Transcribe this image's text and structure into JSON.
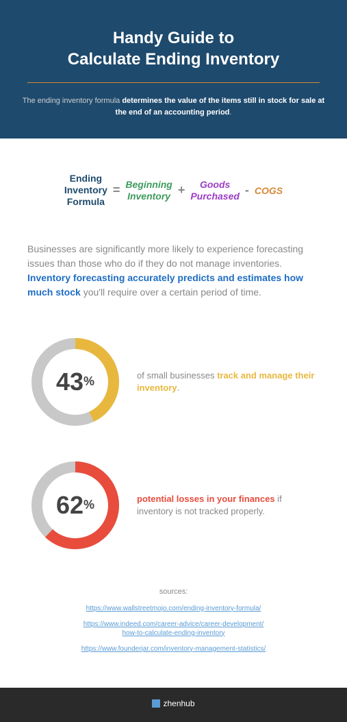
{
  "header": {
    "title": "Handy Guide to\nCalculate Ending Inventory",
    "subtitle_light": "The ending inventory formula ",
    "subtitle_bold": "determines the value of the items still in stock for sale at the end of an accounting period",
    "subtitle_end": ".",
    "background_color": "#1e4a6d",
    "divider_color": "#d68838"
  },
  "formula": {
    "label": "Ending\nInventory\nFormula",
    "eq": "=",
    "beginning": "Beginning\nInventory",
    "plus": "+",
    "goods": "Goods\nPurchased",
    "minus": "-",
    "cogs": "COGS",
    "label_color": "#1e4a6d",
    "beginning_color": "#3d9b5c",
    "goods_color": "#9c3dc4",
    "cogs_color": "#d68838"
  },
  "body": {
    "text1": "Businesses are significantly more likely to experience forecasting issues than those who do if they do not manage inventories. ",
    "highlight": "Inventory forecasting accurately predicts and estimates how much stock",
    "text2": " you'll require over a certain period of time.",
    "highlight_color": "#1e6dc4"
  },
  "stat1": {
    "percent": 43,
    "num": "43",
    "pct": "%",
    "text_before": "of small businesses ",
    "text_highlight": "track and manage their inventory",
    "text_after": ".",
    "ring_color": "#e8b83e",
    "ring_bg": "#c8c8c8"
  },
  "stat2": {
    "percent": 62,
    "num": "62",
    "pct": "%",
    "text_highlight": "potential losses in your finances",
    "text_after": " if inventory is not tracked properly.",
    "ring_color": "#e84c3d",
    "ring_bg": "#c8c8c8"
  },
  "sources": {
    "label": "sources:",
    "links": [
      "https://www.wallstreetmojo.com/ending-inventory-formula/",
      "https://www.indeed.com/career-advice/career-development/\nhow-to-calculate-ending-inventory",
      "https://www.founderjar.com/inventory-management-statistics/"
    ]
  },
  "footer": {
    "brand": "zhenhub",
    "background_color": "#2a2a2a"
  },
  "donut": {
    "radius": 56,
    "stroke_width": 16,
    "circumference": 351.86
  }
}
